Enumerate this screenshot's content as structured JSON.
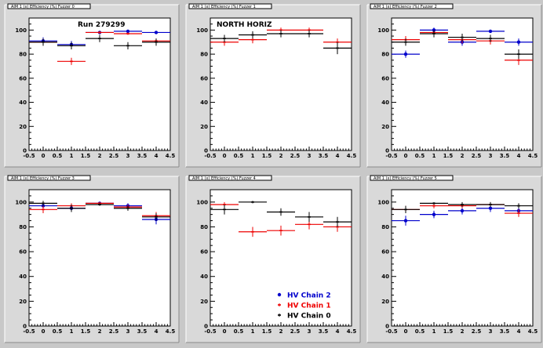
{
  "colors": {
    "chain2": "#0000cc",
    "chain1": "#ee0000",
    "chain0": "#000000"
  },
  "chart_data": [
    {
      "type": "scatter",
      "title": "AIM 1 (x) Efficiency (%) Fuzzer 0",
      "label": "Run 279299",
      "xlim": [
        -0.5,
        4.5
      ],
      "ylim": [
        0,
        110
      ],
      "xticks": [
        "-0.5",
        "0",
        "0.5",
        "1",
        "1.5",
        "2",
        "2.5",
        "3",
        "3.5",
        "4",
        "4.5"
      ],
      "yticks": [
        "0",
        "20",
        "40",
        "60",
        "80",
        "100"
      ],
      "series": [
        {
          "name": "HV Chain 2",
          "color": "#0000cc",
          "marker": "dot",
          "x": [
            0,
            1,
            2,
            3,
            4
          ],
          "y": [
            91,
            88,
            98,
            99,
            98
          ],
          "err": [
            3,
            3,
            1,
            1,
            1
          ]
        },
        {
          "name": "HV Chain 1",
          "color": "#ee0000",
          "marker": "cross",
          "x": [
            0,
            1,
            2,
            3,
            4
          ],
          "y": [
            90,
            74,
            98,
            97,
            91
          ],
          "err": [
            3,
            3,
            1,
            1,
            2
          ]
        },
        {
          "name": "HV Chain 0",
          "color": "#000000",
          "marker": "cross",
          "x": [
            0,
            1,
            2,
            3,
            4
          ],
          "y": [
            90,
            87,
            93,
            87,
            90
          ],
          "err": [
            3,
            3,
            3,
            3,
            3
          ]
        }
      ]
    },
    {
      "type": "scatter",
      "title": "AIM 1 (x) Efficiency (%) Fuzzer 1",
      "label": "NORTH HORIZ",
      "xlim": [
        -0.5,
        4.5
      ],
      "ylim": [
        0,
        110
      ],
      "xticks": [
        "-0.5",
        "0",
        "0.5",
        "1",
        "1.5",
        "2",
        "2.5",
        "3",
        "3.5",
        "4",
        "4.5"
      ],
      "yticks": [
        "0",
        "20",
        "40",
        "60",
        "80",
        "100"
      ],
      "series": [
        {
          "name": "HV Chain 2",
          "color": "#0000cc",
          "marker": "dot",
          "x": [],
          "y": [],
          "err": []
        },
        {
          "name": "HV Chain 1",
          "color": "#ee0000",
          "marker": "cross",
          "x": [
            0,
            1,
            2,
            3,
            4
          ],
          "y": [
            90,
            92,
            100,
            100,
            90
          ],
          "err": [
            3,
            3,
            2,
            2,
            3
          ]
        },
        {
          "name": "HV Chain 0",
          "color": "#000000",
          "marker": "cross",
          "x": [
            0,
            1,
            2,
            3,
            4
          ],
          "y": [
            93,
            96,
            97,
            97,
            85
          ],
          "err": [
            3,
            3,
            3,
            3,
            5
          ]
        }
      ]
    },
    {
      "type": "scatter",
      "title": "AIM 1 (x) Efficiency (%) Fuzzer 2",
      "label": "",
      "xlim": [
        -0.5,
        4.5
      ],
      "ylim": [
        0,
        110
      ],
      "xticks": [
        "-0.5",
        "0",
        "0.5",
        "1",
        "1.5",
        "2",
        "2.5",
        "3",
        "3.5",
        "4",
        "4.5"
      ],
      "yticks": [
        "0",
        "20",
        "40",
        "60",
        "80",
        "100"
      ],
      "series": [
        {
          "name": "HV Chain 2",
          "color": "#0000cc",
          "marker": "dot",
          "x": [
            0,
            1,
            2,
            3,
            4
          ],
          "y": [
            80,
            100,
            90,
            99,
            90
          ],
          "err": [
            3,
            2,
            3,
            1,
            3
          ]
        },
        {
          "name": "HV Chain 1",
          "color": "#ee0000",
          "marker": "cross",
          "x": [
            0,
            1,
            2,
            3,
            4
          ],
          "y": [
            92,
            98,
            92,
            91,
            75
          ],
          "err": [
            3,
            2,
            3,
            3,
            4
          ]
        },
        {
          "name": "HV Chain 0",
          "color": "#000000",
          "marker": "cross",
          "x": [
            0,
            1,
            2,
            3,
            4
          ],
          "y": [
            90,
            97,
            94,
            93,
            80
          ],
          "err": [
            3,
            3,
            3,
            3,
            4
          ]
        }
      ]
    },
    {
      "type": "scatter",
      "title": "AIM 1 (x) Efficiency (%) Fuzzer 3",
      "label": "",
      "xlim": [
        -0.5,
        4.5
      ],
      "ylim": [
        0,
        110
      ],
      "xticks": [
        "-0.5",
        "0",
        "0.5",
        "1",
        "1.5",
        "2",
        "2.5",
        "3",
        "3.5",
        "4",
        "4.5"
      ],
      "yticks": [
        "0",
        "20",
        "40",
        "60",
        "80",
        "100"
      ],
      "series": [
        {
          "name": "HV Chain 2",
          "color": "#0000cc",
          "marker": "dot",
          "x": [
            0,
            1,
            2,
            3,
            4
          ],
          "y": [
            97,
            95,
            99,
            97,
            86
          ],
          "err": [
            3,
            3,
            1,
            2,
            4
          ]
        },
        {
          "name": "HV Chain 1",
          "color": "#ee0000",
          "marker": "cross",
          "x": [
            0,
            1,
            2,
            3,
            4
          ],
          "y": [
            94,
            97,
            99,
            96,
            89
          ],
          "err": [
            3,
            2,
            1,
            2,
            3
          ]
        },
        {
          "name": "HV Chain 0",
          "color": "#000000",
          "marker": "cross",
          "x": [
            0,
            1,
            2,
            3,
            4
          ],
          "y": [
            99,
            95,
            98,
            95,
            88
          ],
          "err": [
            2,
            3,
            1,
            2,
            3
          ]
        }
      ]
    },
    {
      "type": "scatter",
      "title": "AIM 1 (x) Efficiency (%) Fuzzer 4",
      "label": "",
      "xlim": [
        -0.5,
        4.5
      ],
      "ylim": [
        0,
        110
      ],
      "xticks": [
        "-0.5",
        "0",
        "0.5",
        "1",
        "1.5",
        "2",
        "2.5",
        "3",
        "3.5",
        "4",
        "4.5"
      ],
      "yticks": [
        "0",
        "20",
        "40",
        "60",
        "80",
        "100"
      ],
      "legend": "bottom-right",
      "series": [
        {
          "name": "HV Chain 2",
          "color": "#0000cc",
          "marker": "dot",
          "x": [],
          "y": [],
          "err": []
        },
        {
          "name": "HV Chain 1",
          "color": "#ee0000",
          "marker": "cross",
          "x": [
            0,
            1,
            2,
            3,
            4
          ],
          "y": [
            98,
            76,
            77,
            82,
            80
          ],
          "err": [
            2,
            4,
            4,
            4,
            4
          ]
        },
        {
          "name": "HV Chain 0",
          "color": "#000000",
          "marker": "cross",
          "x": [
            0,
            1,
            2,
            3,
            4
          ],
          "y": [
            94,
            100,
            92,
            88,
            84
          ],
          "err": [
            4,
            1,
            3,
            4,
            4
          ]
        }
      ]
    },
    {
      "type": "scatter",
      "title": "AIM 1 (x) Efficiency (%) Fuzzer 5",
      "label": "",
      "xlim": [
        -0.5,
        4.5
      ],
      "ylim": [
        0,
        110
      ],
      "xticks": [
        "-0.5",
        "0",
        "0.5",
        "1",
        "1.5",
        "2",
        "2.5",
        "3",
        "3.5",
        "4",
        "4.5"
      ],
      "yticks": [
        "0",
        "20",
        "40",
        "60",
        "80",
        "100"
      ],
      "series": [
        {
          "name": "HV Chain 2",
          "color": "#0000cc",
          "marker": "dot",
          "x": [
            0,
            1,
            2,
            3,
            4
          ],
          "y": [
            85,
            90,
            93,
            95,
            93
          ],
          "err": [
            4,
            3,
            3,
            3,
            3
          ]
        },
        {
          "name": "HV Chain 1",
          "color": "#ee0000",
          "marker": "cross",
          "x": [
            0,
            1,
            2,
            3,
            4
          ],
          "y": [
            94,
            97,
            97,
            98,
            91
          ],
          "err": [
            3,
            2,
            2,
            2,
            3
          ]
        },
        {
          "name": "HV Chain 0",
          "color": "#000000",
          "marker": "cross",
          "x": [
            0,
            1,
            2,
            3,
            4
          ],
          "y": [
            94,
            99,
            98,
            98,
            97
          ],
          "err": [
            3,
            1,
            2,
            2,
            2
          ]
        }
      ]
    }
  ]
}
